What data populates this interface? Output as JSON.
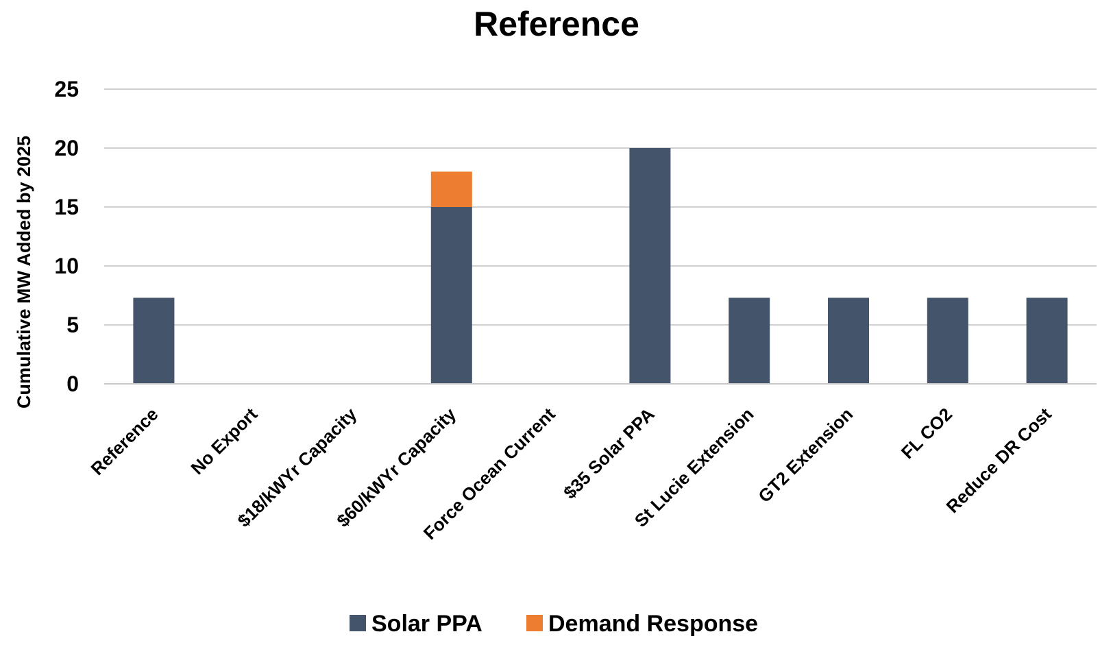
{
  "chart_data": {
    "type": "bar",
    "stacked": true,
    "title": "Reference",
    "xlabel": "",
    "ylabel": "Cumulative MW Added by 2025",
    "ylim": [
      0,
      25
    ],
    "yticks": [
      0,
      5,
      10,
      15,
      20,
      25
    ],
    "grid": true,
    "legend_position": "bottom",
    "categories": [
      "Reference",
      "No Export",
      "$18/kWYr Capacity",
      "$60/kWYr Capacity",
      "Force Ocean Current",
      "$35 Solar PPA",
      "St Lucie Extension",
      "GT2 Extension",
      "FL CO2",
      "Reduce DR Cost"
    ],
    "series": [
      {
        "name": "Solar PPA",
        "color": "#44546a",
        "values": [
          7.3,
          0,
          0,
          15,
          0,
          20,
          7.3,
          7.3,
          7.3,
          7.3
        ]
      },
      {
        "name": "Demand Response",
        "color": "#ed7d31",
        "values": [
          0,
          0,
          0,
          3,
          0,
          0,
          0,
          0,
          0,
          0
        ]
      }
    ]
  }
}
